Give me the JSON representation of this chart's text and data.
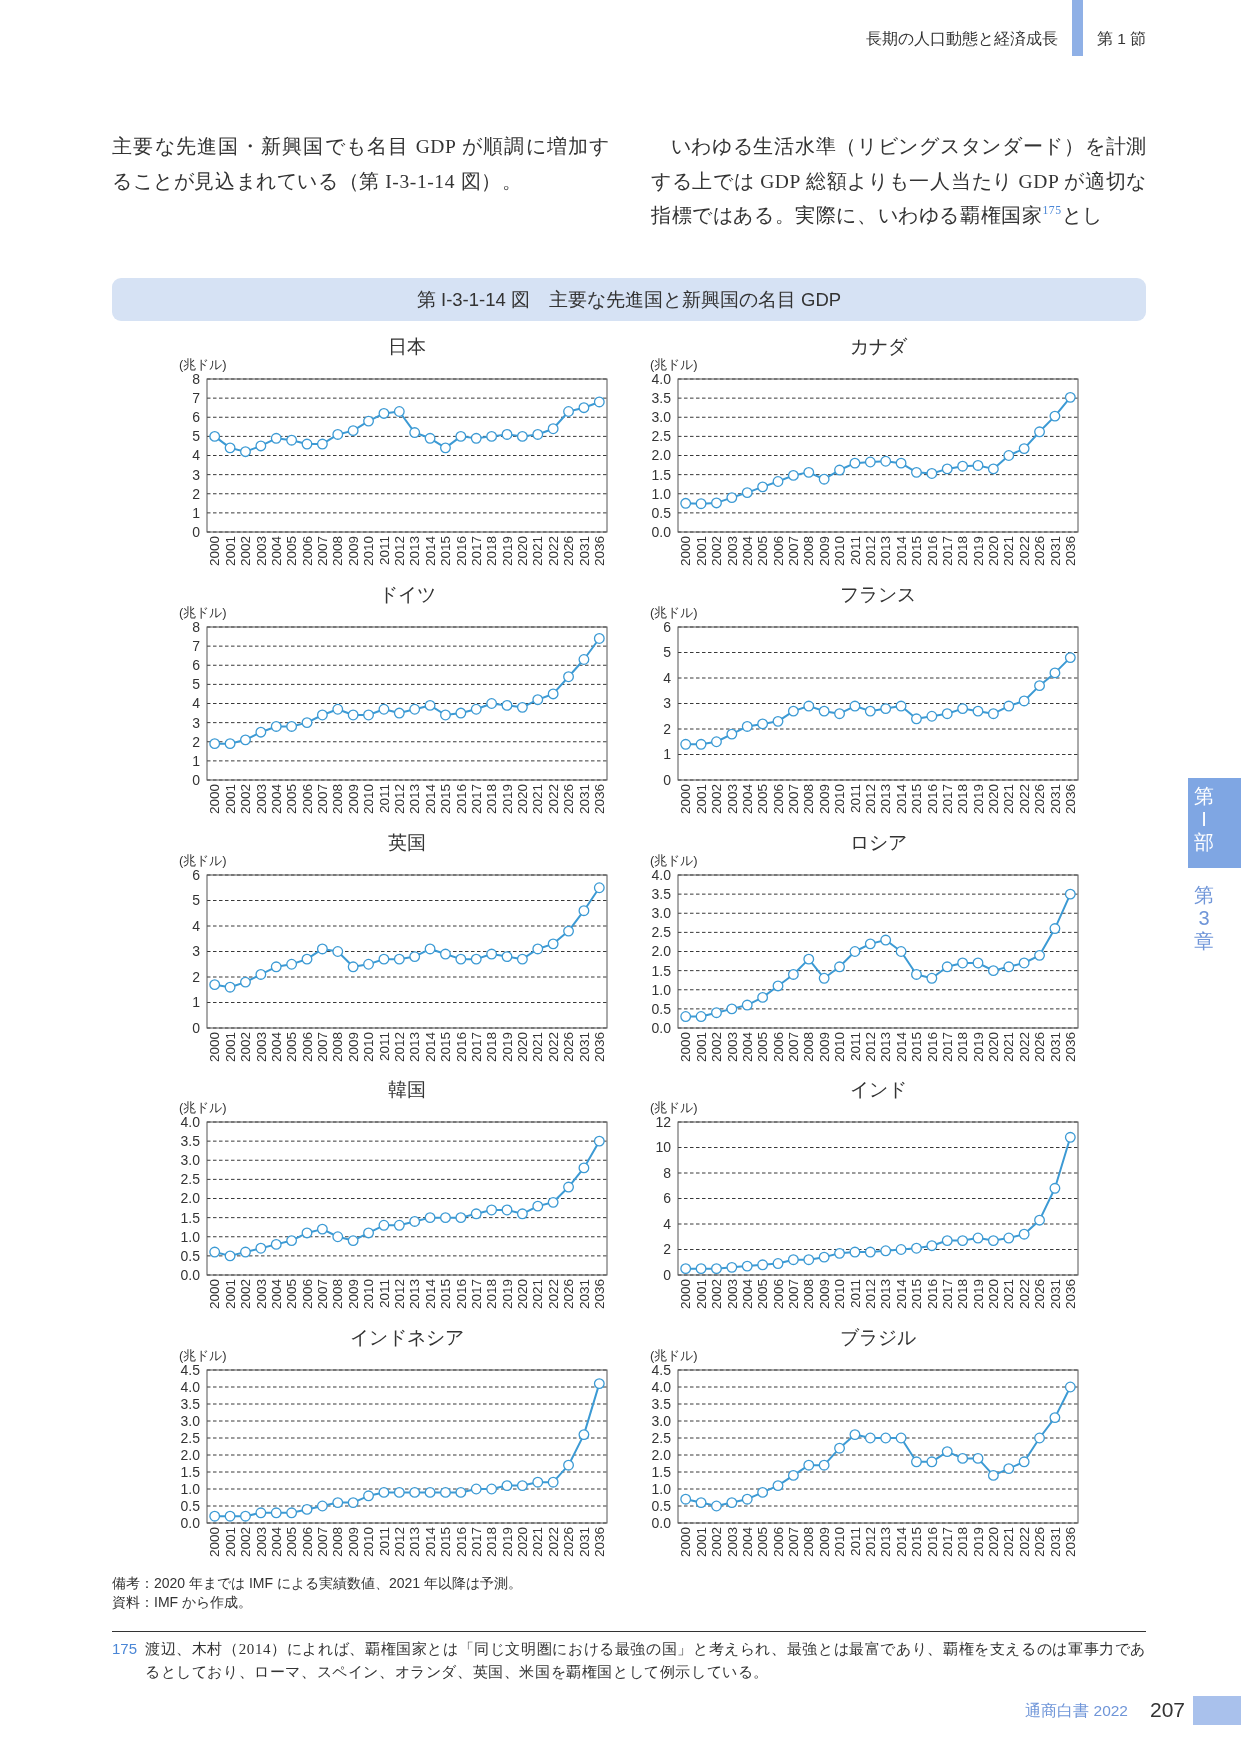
{
  "chart_data": [
    {
      "type": "other",
      "title": "第 I-3-1-14 図　主要な先進国と新興国の名目 GDP",
      "annotations": [
        "長期の人口動態と経済成長",
        "第 1 節",
        "主要な先進国・新興国でも名目 GDP が順調に増加することが見込まれている（第 I-3-1-14 図）。",
        "いわゆる生活水準（リビングスタンダード）を計測する上では GDP 総額よりも一人当たり GDP が適切な指標ではある。実際に、いわゆる覇権国家$^{175}$とし"
      ]
    },
    {
      "type": "line",
      "title": "日本",
      "ylabel": "(兆ドル)",
      "categories": [
        "2000",
        "2001",
        "2002",
        "2003",
        "2004",
        "2005",
        "2006",
        "2007",
        "2008",
        "2009",
        "2010",
        "2011",
        "2012",
        "2013",
        "2014",
        "2015",
        "2016",
        "2017",
        "2018",
        "2019",
        "2020",
        "2021",
        "2022",
        "2026",
        "2031",
        "2036"
      ],
      "values": [
        5.0,
        4.4,
        4.2,
        4.5,
        4.9,
        4.8,
        4.6,
        4.6,
        5.1,
        5.3,
        5.8,
        6.2,
        6.3,
        5.2,
        4.9,
        4.4,
        5.0,
        4.9,
        5.0,
        5.1,
        5.0,
        5.1,
        5.4,
        6.3,
        6.5,
        6.8
      ],
      "color": "#3c9ad4",
      "marker": "circle",
      "grid": "y",
      "ylim": [
        0,
        8
      ],
      "yticks": [
        0,
        1,
        2,
        3,
        4,
        5,
        6,
        7,
        8
      ]
    },
    {
      "type": "line",
      "title": "カナダ",
      "ylabel": "(兆ドル)",
      "categories": [
        "2000",
        "2001",
        "2002",
        "2003",
        "2004",
        "2005",
        "2006",
        "2007",
        "2008",
        "2009",
        "2010",
        "2011",
        "2012",
        "2013",
        "2014",
        "2015",
        "2016",
        "2017",
        "2018",
        "2019",
        "2020",
        "2021",
        "2022",
        "2026",
        "2031",
        "2036"
      ],
      "values": [
        0.75,
        0.74,
        0.76,
        0.9,
        1.03,
        1.18,
        1.32,
        1.48,
        1.56,
        1.38,
        1.62,
        1.8,
        1.83,
        1.85,
        1.8,
        1.56,
        1.53,
        1.65,
        1.72,
        1.74,
        1.65,
        2.0,
        2.18,
        2.62,
        3.03,
        3.52
      ],
      "color": "#3c9ad4",
      "marker": "circle",
      "grid": "y",
      "ylim": [
        0,
        4
      ],
      "yticks": [
        {
          "value": 0,
          "label": "0.0"
        },
        0.5,
        {
          "value": 1,
          "label": "1.0"
        },
        1.5,
        {
          "value": 2,
          "label": "2.0"
        },
        2.5,
        {
          "value": 3,
          "label": "3.0"
        },
        3.5,
        {
          "value": 4,
          "label": "4.0"
        }
      ]
    },
    {
      "type": "line",
      "title": "ドイツ",
      "ylabel": "(兆ドル)",
      "categories": [
        "2000",
        "2001",
        "2002",
        "2003",
        "2004",
        "2005",
        "2006",
        "2007",
        "2008",
        "2009",
        "2010",
        "2011",
        "2012",
        "2013",
        "2014",
        "2015",
        "2016",
        "2017",
        "2018",
        "2019",
        "2020",
        "2021",
        "2022",
        "2026",
        "2031",
        "2036"
      ],
      "values": [
        1.9,
        1.9,
        2.1,
        2.5,
        2.8,
        2.8,
        3.0,
        3.4,
        3.7,
        3.4,
        3.4,
        3.7,
        3.5,
        3.7,
        3.9,
        3.4,
        3.5,
        3.7,
        4.0,
        3.9,
        3.8,
        4.2,
        4.5,
        5.4,
        6.3,
        7.4
      ],
      "color": "#3c9ad4",
      "marker": "circle",
      "grid": "y",
      "ylim": [
        0,
        8
      ],
      "yticks": [
        0,
        1,
        2,
        3,
        4,
        5,
        6,
        7,
        8
      ]
    },
    {
      "type": "line",
      "title": "フランス",
      "ylabel": "(兆ドル)",
      "categories": [
        "2000",
        "2001",
        "2002",
        "2003",
        "2004",
        "2005",
        "2006",
        "2007",
        "2008",
        "2009",
        "2010",
        "2011",
        "2012",
        "2013",
        "2014",
        "2015",
        "2016",
        "2017",
        "2018",
        "2019",
        "2020",
        "2021",
        "2022",
        "2026",
        "2031",
        "2036"
      ],
      "values": [
        1.4,
        1.4,
        1.5,
        1.8,
        2.1,
        2.2,
        2.3,
        2.7,
        2.9,
        2.7,
        2.6,
        2.9,
        2.7,
        2.8,
        2.9,
        2.4,
        2.5,
        2.6,
        2.8,
        2.7,
        2.6,
        2.9,
        3.1,
        3.7,
        4.2,
        4.8
      ],
      "color": "#3c9ad4",
      "marker": "circle",
      "grid": "y",
      "ylim": [
        0,
        6
      ],
      "yticks": [
        0,
        1,
        2,
        3,
        4,
        5,
        6
      ]
    },
    {
      "type": "line",
      "title": "英国",
      "ylabel": "(兆ドル)",
      "categories": [
        "2000",
        "2001",
        "2002",
        "2003",
        "2004",
        "2005",
        "2006",
        "2007",
        "2008",
        "2009",
        "2010",
        "2011",
        "2012",
        "2013",
        "2014",
        "2015",
        "2016",
        "2017",
        "2018",
        "2019",
        "2020",
        "2021",
        "2022",
        "2026",
        "2031",
        "2036"
      ],
      "values": [
        1.7,
        1.6,
        1.8,
        2.1,
        2.4,
        2.5,
        2.7,
        3.1,
        3.0,
        2.4,
        2.5,
        2.7,
        2.7,
        2.8,
        3.1,
        2.9,
        2.7,
        2.7,
        2.9,
        2.8,
        2.7,
        3.1,
        3.3,
        3.8,
        4.6,
        5.5
      ],
      "color": "#3c9ad4",
      "marker": "circle",
      "grid": "y",
      "ylim": [
        0,
        6
      ],
      "yticks": [
        0,
        1,
        2,
        3,
        4,
        5,
        6
      ]
    },
    {
      "type": "line",
      "title": "ロシア",
      "ylabel": "(兆ドル)",
      "categories": [
        "2000",
        "2001",
        "2002",
        "2003",
        "2004",
        "2005",
        "2006",
        "2007",
        "2008",
        "2009",
        "2010",
        "2011",
        "2012",
        "2013",
        "2014",
        "2015",
        "2016",
        "2017",
        "2018",
        "2019",
        "2020",
        "2021",
        "2022",
        "2026",
        "2031",
        "2036"
      ],
      "values": [
        0.3,
        0.3,
        0.4,
        0.5,
        0.6,
        0.8,
        1.1,
        1.4,
        1.8,
        1.3,
        1.6,
        2.0,
        2.2,
        2.3,
        2.0,
        1.4,
        1.3,
        1.6,
        1.7,
        1.7,
        1.5,
        1.6,
        1.7,
        1.9,
        2.6,
        3.5
      ],
      "color": "#3c9ad4",
      "marker": "circle",
      "grid": "y",
      "ylim": [
        0,
        4
      ],
      "yticks": [
        {
          "value": 0,
          "label": "0.0"
        },
        0.5,
        {
          "value": 1,
          "label": "1.0"
        },
        1.5,
        {
          "value": 2,
          "label": "2.0"
        },
        2.5,
        {
          "value": 3,
          "label": "3.0"
        },
        3.5,
        {
          "value": 4,
          "label": "4.0"
        }
      ]
    },
    {
      "type": "line",
      "title": "韓国",
      "ylabel": "(兆ドル)",
      "categories": [
        "2000",
        "2001",
        "2002",
        "2003",
        "2004",
        "2005",
        "2006",
        "2007",
        "2008",
        "2009",
        "2010",
        "2011",
        "2012",
        "2013",
        "2014",
        "2015",
        "2016",
        "2017",
        "2018",
        "2019",
        "2020",
        "2021",
        "2022",
        "2026",
        "2031",
        "2036"
      ],
      "values": [
        0.6,
        0.5,
        0.6,
        0.7,
        0.8,
        0.9,
        1.1,
        1.2,
        1.0,
        0.9,
        1.1,
        1.3,
        1.3,
        1.4,
        1.5,
        1.5,
        1.5,
        1.6,
        1.7,
        1.7,
        1.6,
        1.8,
        1.9,
        2.3,
        2.8,
        3.5
      ],
      "color": "#3c9ad4",
      "marker": "circle",
      "grid": "y",
      "ylim": [
        0,
        4
      ],
      "yticks": [
        {
          "value": 0,
          "label": "0.0"
        },
        0.5,
        {
          "value": 1,
          "label": "1.0"
        },
        1.5,
        {
          "value": 2,
          "label": "2.0"
        },
        2.5,
        {
          "value": 3,
          "label": "3.0"
        },
        3.5,
        {
          "value": 4,
          "label": "4.0"
        }
      ]
    },
    {
      "type": "line",
      "title": "インド",
      "ylabel": "(兆ドル)",
      "categories": [
        "2000",
        "2001",
        "2002",
        "2003",
        "2004",
        "2005",
        "2006",
        "2007",
        "2008",
        "2009",
        "2010",
        "2011",
        "2012",
        "2013",
        "2014",
        "2015",
        "2016",
        "2017",
        "2018",
        "2019",
        "2020",
        "2021",
        "2022",
        "2026",
        "2031",
        "2036"
      ],
      "values": [
        0.5,
        0.5,
        0.5,
        0.6,
        0.7,
        0.8,
        0.9,
        1.2,
        1.2,
        1.4,
        1.7,
        1.8,
        1.8,
        1.9,
        2.0,
        2.1,
        2.3,
        2.7,
        2.7,
        2.9,
        2.7,
        2.9,
        3.2,
        4.3,
        6.8,
        10.8
      ],
      "color": "#3c9ad4",
      "marker": "circle",
      "grid": "y",
      "ylim": [
        0,
        12
      ],
      "yticks": [
        0,
        2,
        4,
        6,
        8,
        10,
        12
      ]
    },
    {
      "type": "line",
      "title": "インドネシア",
      "ylabel": "(兆ドル)",
      "categories": [
        "2000",
        "2001",
        "2002",
        "2003",
        "2004",
        "2005",
        "2006",
        "2007",
        "2008",
        "2009",
        "2010",
        "2011",
        "2012",
        "2013",
        "2014",
        "2015",
        "2016",
        "2017",
        "2018",
        "2019",
        "2020",
        "2021",
        "2022",
        "2026",
        "2031",
        "2036"
      ],
      "values": [
        0.2,
        0.2,
        0.2,
        0.3,
        0.3,
        0.3,
        0.4,
        0.5,
        0.6,
        0.6,
        0.8,
        0.9,
        0.9,
        0.9,
        0.9,
        0.9,
        0.9,
        1.0,
        1.0,
        1.1,
        1.1,
        1.2,
        1.2,
        1.7,
        2.6,
        4.1
      ],
      "color": "#3c9ad4",
      "marker": "circle",
      "grid": "y",
      "ylim": [
        0,
        4.5
      ],
      "yticks": [
        {
          "value": 0,
          "label": "0.0"
        },
        0.5,
        {
          "value": 1,
          "label": "1.0"
        },
        1.5,
        {
          "value": 2,
          "label": "2.0"
        },
        2.5,
        {
          "value": 3,
          "label": "3.0"
        },
        3.5,
        {
          "value": 4,
          "label": "4.0"
        },
        4.5
      ]
    },
    {
      "type": "line",
      "title": "ブラジル",
      "ylabel": "(兆ドル)",
      "categories": [
        "2000",
        "2001",
        "2002",
        "2003",
        "2004",
        "2005",
        "2006",
        "2007",
        "2008",
        "2009",
        "2010",
        "2011",
        "2012",
        "2013",
        "2014",
        "2015",
        "2016",
        "2017",
        "2018",
        "2019",
        "2020",
        "2021",
        "2022",
        "2026",
        "2031",
        "2036"
      ],
      "values": [
        0.7,
        0.6,
        0.5,
        0.6,
        0.7,
        0.9,
        1.1,
        1.4,
        1.7,
        1.7,
        2.2,
        2.6,
        2.5,
        2.5,
        2.5,
        1.8,
        1.8,
        2.1,
        1.9,
        1.9,
        1.4,
        1.6,
        1.8,
        2.5,
        3.1,
        4.0
      ],
      "color": "#3c9ad4",
      "marker": "circle",
      "grid": "y",
      "ylim": [
        0,
        4.5
      ],
      "yticks": [
        {
          "value": 0,
          "label": "0.0"
        },
        0.5,
        {
          "value": 1,
          "label": "1.0"
        },
        1.5,
        {
          "value": 2,
          "label": "2.0"
        },
        2.5,
        {
          "value": 3,
          "label": "3.0"
        },
        3.5,
        {
          "value": 4,
          "label": "4.0"
        },
        4.5
      ]
    },
    {
      "type": "other",
      "annotations": [
        "備考：2020 年までは IMF による実績数値、2021 年以降は予測。",
        "資料：IMF から作成。",
        "175",
        "渡辺、木村（2014）によれば、覇権国家とは「同じ文明圏における最強の国」と考えられ、最強とは最富であり、覇権を支えるのは軍事力であるとしており、ローマ、スペイン、オランダ、英国、米国を覇権国として例示している。",
        "通商白書 2022",
        "207"
      ]
    },
    {
      "type": "other",
      "annotations": [
        "第I部",
        "第3章"
      ]
    }
  ]
}
